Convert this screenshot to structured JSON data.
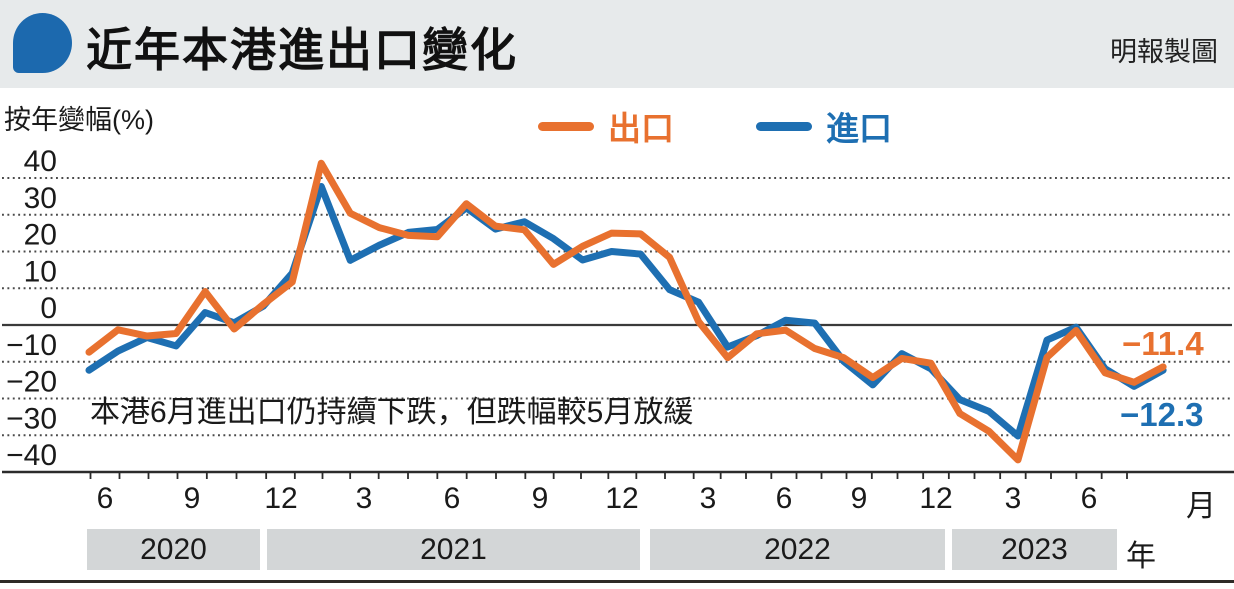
{
  "header": {
    "title": "近年本港進出口變化",
    "credit": "明報製圖"
  },
  "colors": {
    "export_orange": "#e8712f",
    "import_blue": "#1e6fb2",
    "header_bg": "#e7eaeb",
    "bubble_blue": "#1c69ae",
    "year_band_bg": "#d3d6d7",
    "grid_dotted": "#4a4a4a",
    "axis_solid": "#2b2b2b",
    "text": "#1a1a1a"
  },
  "chart_data": {
    "type": "line",
    "ylabel": "按年變幅(%)",
    "ylim": [
      -40,
      40
    ],
    "y_ticks": [
      40,
      30,
      20,
      10,
      0,
      -10,
      -20,
      -30,
      -40
    ],
    "y_tick_labels": [
      "40",
      "30",
      "20",
      "10",
      "0",
      "−10",
      "−20",
      "−30",
      "−40"
    ],
    "grid": "dotted horizontal, solid zero line and bottom axis",
    "legend_position": "top-center",
    "x_unit_label": "月",
    "year_unit_label": "年",
    "x_tick_labels": [
      "6",
      "9",
      "12",
      "3",
      "6",
      "9",
      "12",
      "3",
      "6",
      "9",
      "12",
      "3",
      "6"
    ],
    "years": [
      {
        "label": "2020"
      },
      {
        "label": "2021"
      },
      {
        "label": "2022"
      },
      {
        "label": "2023"
      }
    ],
    "x": [
      "2020-05",
      "2020-06",
      "2020-07",
      "2020-08",
      "2020-09",
      "2020-10",
      "2020-11",
      "2020-12",
      "2021-01",
      "2021-02",
      "2021-03",
      "2021-04",
      "2021-05",
      "2021-06",
      "2021-07",
      "2021-08",
      "2021-09",
      "2021-10",
      "2021-11",
      "2021-12",
      "2022-01",
      "2022-02",
      "2022-03",
      "2022-04",
      "2022-05",
      "2022-06",
      "2022-07",
      "2022-08",
      "2022-09",
      "2022-10",
      "2022-11",
      "2022-12",
      "2023-01",
      "2023-02",
      "2023-03",
      "2023-04",
      "2023-05",
      "2023-06"
    ],
    "series": [
      {
        "name": "出口",
        "color": "#e8712f",
        "end_label": "−11.4",
        "values": [
          -7.4,
          -1.3,
          -3.0,
          -2.3,
          9.1,
          -1.1,
          5.6,
          11.7,
          44.0,
          30.4,
          26.5,
          24.4,
          24.0,
          33.0,
          26.9,
          25.9,
          16.5,
          21.4,
          25.0,
          24.8,
          18.4,
          0.9,
          -8.9,
          -2.4,
          -1.4,
          -6.4,
          -8.9,
          -14.3,
          -9.1,
          -10.4,
          -24.1,
          -28.9,
          -36.7,
          -8.8,
          -1.5,
          -13.0,
          -15.6,
          -11.4
        ]
      },
      {
        "name": "進口",
        "color": "#1e6fb2",
        "end_label": "−12.3",
        "values": [
          -12.3,
          -7.1,
          -3.4,
          -5.7,
          3.4,
          0.6,
          5.1,
          14.1,
          37.7,
          17.6,
          21.7,
          25.2,
          26.0,
          31.9,
          26.1,
          28.1,
          23.5,
          17.7,
          20.0,
          19.3,
          9.6,
          6.2,
          -6.0,
          -2.9,
          1.3,
          0.5,
          -9.9,
          -16.3,
          -7.8,
          -11.9,
          -20.3,
          -23.5,
          -30.2,
          -4.1,
          -0.6,
          -11.9,
          -16.7,
          -12.3
        ]
      }
    ],
    "annotation": "本港6月進出口仍持續下跌，但跌幅較5月放緩"
  }
}
